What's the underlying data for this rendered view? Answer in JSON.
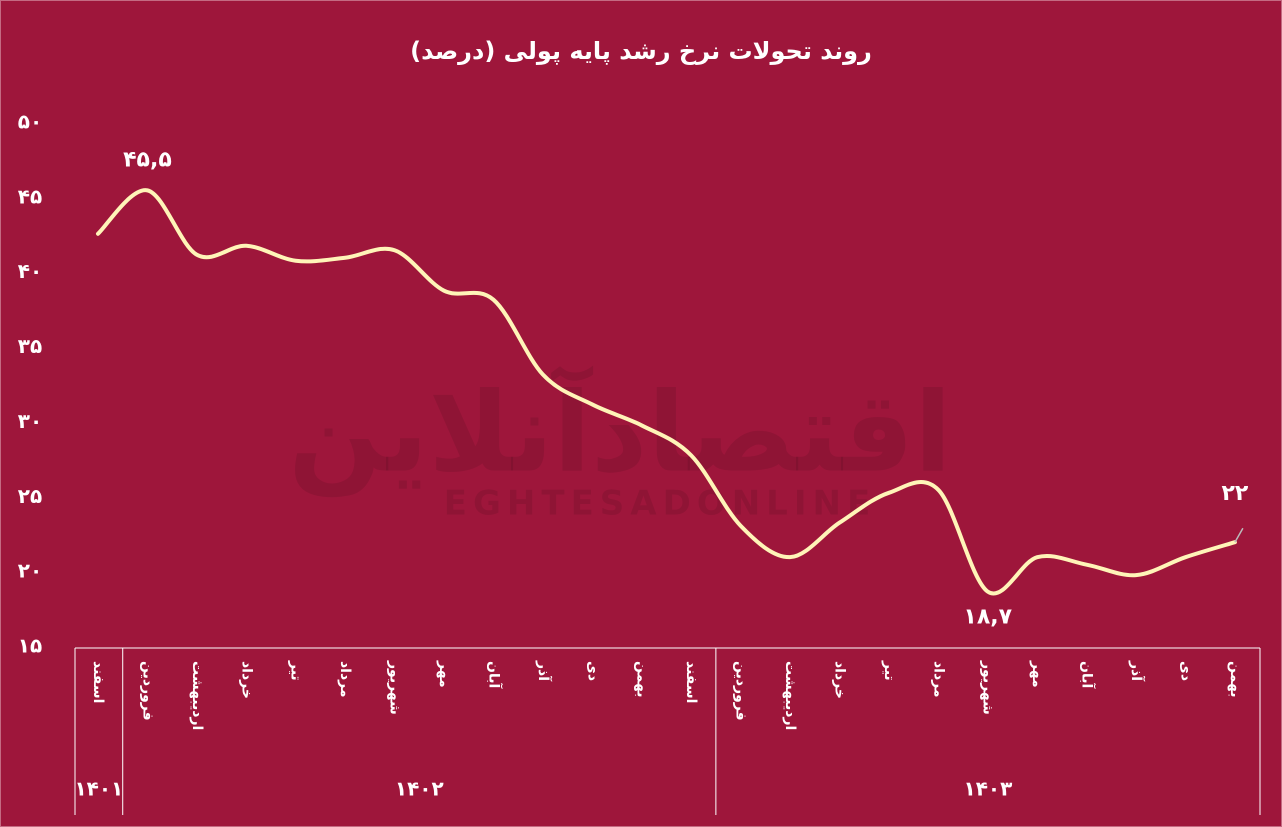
{
  "chart_data": {
    "type": "line",
    "title": "روند تحولات نرخ رشد پایه پولی (درصد)",
    "watermark": [
      "اقتصادآنلاین",
      "EGHTESADONLINE"
    ],
    "categories": [
      "اسفند",
      "فروردین",
      "اردیبهشت",
      "خرداد",
      "تیر",
      "مرداد",
      "شهریور",
      "مهر",
      "آبان",
      "آذر",
      "دی",
      "بهمن",
      "اسفند",
      "فروردین",
      "اردیبهشت",
      "خرداد",
      "تیر",
      "مرداد",
      "شهریور",
      "مهر",
      "آبان",
      "آذر",
      "دی",
      "بهمن"
    ],
    "category_groups": [
      {
        "label": "۱۴۰۱",
        "span": 1
      },
      {
        "label": "۱۴۰۲",
        "span": 12
      },
      {
        "label": "۱۴۰۳",
        "span": 11
      }
    ],
    "series": [
      {
        "name": "نرخ رشد پایه پولی",
        "color": "#fff4b8",
        "values": [
          42.6,
          45.5,
          41.2,
          41.8,
          40.8,
          41.0,
          41.5,
          38.8,
          38.2,
          33.2,
          31.2,
          29.8,
          27.8,
          23.1,
          21.0,
          23.3,
          25.3,
          25.5,
          18.7,
          21.0,
          20.5,
          19.8,
          21.0,
          22
        ],
        "value_labels": [
          null,
          "۴۵,۵",
          null,
          null,
          null,
          null,
          null,
          null,
          null,
          null,
          null,
          null,
          null,
          null,
          null,
          null,
          null,
          null,
          "۱۸,۷",
          null,
          null,
          null,
          null,
          "۲۲"
        ]
      }
    ],
    "ylim": [
      15,
      50
    ],
    "yticks": [
      {
        "value": 15,
        "label": "۱۵"
      },
      {
        "value": 20,
        "label": "۲۰"
      },
      {
        "value": 25,
        "label": "۲۵"
      },
      {
        "value": 30,
        "label": "۳۰"
      },
      {
        "value": 35,
        "label": "۳۵"
      },
      {
        "value": 40,
        "label": "۴۰"
      },
      {
        "value": 45,
        "label": "۴۵"
      },
      {
        "value": 50,
        "label": "۵۰"
      }
    ],
    "grid": false
  }
}
